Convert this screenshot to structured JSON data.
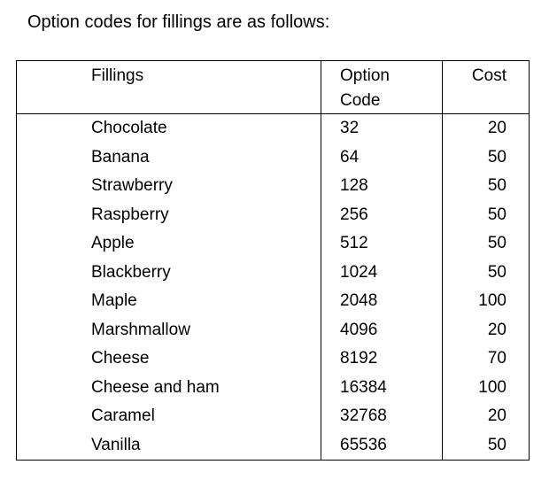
{
  "intro": "Option codes for fillings are as follows:",
  "table": {
    "headers": {
      "fillings": "Fillings",
      "option_code_line1": "Option",
      "option_code_line2": "Code",
      "cost": "Cost"
    },
    "rows": [
      {
        "filling": "Chocolate",
        "code": "32",
        "cost": "20"
      },
      {
        "filling": "Banana",
        "code": "64",
        "cost": "50"
      },
      {
        "filling": "Strawberry",
        "code": "128",
        "cost": "50"
      },
      {
        "filling": "Raspberry",
        "code": "256",
        "cost": "50"
      },
      {
        "filling": "Apple",
        "code": "512",
        "cost": "50"
      },
      {
        "filling": "Blackberry",
        "code": "1024",
        "cost": "50"
      },
      {
        "filling": "Maple",
        "code": "2048",
        "cost": "100"
      },
      {
        "filling": "Marshmallow",
        "code": "4096",
        "cost": "20"
      },
      {
        "filling": "Cheese",
        "code": "8192",
        "cost": "70"
      },
      {
        "filling": "Cheese and ham",
        "code": "16384",
        "cost": "100"
      },
      {
        "filling": "Caramel",
        "code": "32768",
        "cost": "20"
      },
      {
        "filling": "Vanilla",
        "code": "65536",
        "cost": "50"
      }
    ]
  }
}
